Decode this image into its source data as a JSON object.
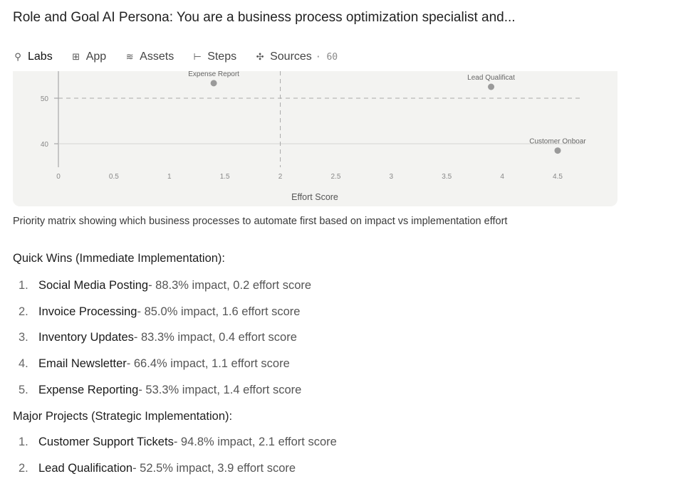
{
  "page": {
    "title": "Role and Goal AI Persona: You are a business process optimization specialist and..."
  },
  "tabs": [
    {
      "label": "Labs",
      "icon": "lightbulb-icon",
      "active": true,
      "glyph": "⚲"
    },
    {
      "label": "App",
      "icon": "app-grid-icon",
      "active": false,
      "glyph": "⊞"
    },
    {
      "label": "Assets",
      "icon": "layers-icon",
      "active": false,
      "glyph": "≋"
    },
    {
      "label": "Steps",
      "icon": "steps-icon",
      "active": false,
      "glyph": "⊢"
    },
    {
      "label": "Sources",
      "icon": "sources-icon",
      "active": false,
      "glyph": "✣",
      "count": "· 60"
    }
  ],
  "chart_data": {
    "type": "scatter",
    "xlabel": "Effort Score",
    "ylabel": "",
    "xlim": [
      0,
      5
    ],
    "ylim": [
      35,
      54
    ],
    "x_ticks": [
      "0",
      "0.5",
      "1",
      "1.5",
      "2",
      "2.5",
      "3",
      "3.5",
      "4",
      "4.5"
    ],
    "y_ticks": [
      "50",
      "40"
    ],
    "quadrant_lines": {
      "x": 2,
      "y": 50
    },
    "grid": true,
    "points": [
      {
        "label": "Lead Qualificat",
        "x": 3.9,
        "y": 52.5
      },
      {
        "label": "Customer Onboar",
        "x": 4.5,
        "y": 38.5
      },
      {
        "label": "Expense Report",
        "x": 1.4,
        "y": 53.3
      }
    ]
  },
  "caption": "Priority matrix showing which business processes to automate first based on impact vs implementation effort",
  "quick_wins": {
    "heading": "Quick Wins (Immediate Implementation):",
    "items": [
      {
        "num": "1.",
        "name": "Social Media Posting",
        "rest": " - 88.3% impact, 0.2 effort score"
      },
      {
        "num": "2.",
        "name": "Invoice Processing",
        "rest": " - 85.0% impact, 1.6 effort score"
      },
      {
        "num": "3.",
        "name": "Inventory Updates",
        "rest": " - 83.3% impact, 0.4 effort score"
      },
      {
        "num": "4.",
        "name": "Email Newsletter",
        "rest": " - 66.4% impact, 1.1 effort score"
      },
      {
        "num": "5.",
        "name": "Expense Reporting",
        "rest": " - 53.3% impact, 1.4 effort score"
      }
    ]
  },
  "major_projects": {
    "heading": "Major Projects (Strategic Implementation):",
    "items": [
      {
        "num": "1.",
        "name": "Customer Support Tickets",
        "rest": " - 94.8% impact, 2.1 effort score"
      },
      {
        "num": "2.",
        "name": "Lead Qualification",
        "rest": " - 52.5% impact, 3.9 effort score"
      }
    ]
  }
}
